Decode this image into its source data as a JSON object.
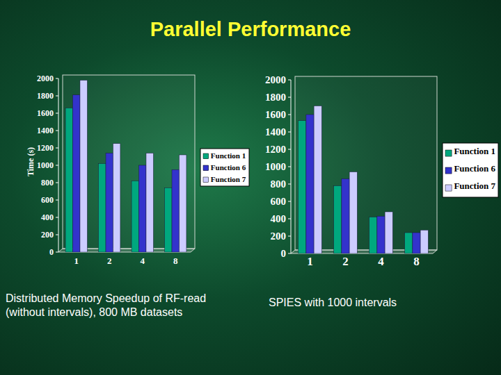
{
  "slide": {
    "title": "Parallel Performance"
  },
  "chart_data": [
    {
      "type": "bar",
      "caption": "Distributed Memory Speedup of RF-read (without intervals), 800 MB datasets",
      "y_label": "Time (s)",
      "categories": [
        "1",
        "2",
        "4",
        "8"
      ],
      "series": [
        {
          "name": "Function 1",
          "color": "#00a87e",
          "values": [
            1660,
            1020,
            820,
            740
          ]
        },
        {
          "name": "Function 6",
          "color": "#3333cc",
          "values": [
            1810,
            1140,
            1000,
            950
          ]
        },
        {
          "name": "Function 7",
          "color": "#ccccff",
          "values": [
            1980,
            1250,
            1140,
            1120
          ]
        }
      ],
      "ylim": [
        0,
        2000
      ],
      "yticks": [
        0,
        200,
        400,
        600,
        800,
        1000,
        1200,
        1400,
        1600,
        1800,
        2000
      ],
      "grid": false,
      "legend": "right"
    },
    {
      "type": "bar",
      "caption": "SPIES with 1000 intervals",
      "categories": [
        "1",
        "2",
        "4",
        "8"
      ],
      "series": [
        {
          "name": "Function 1",
          "color": "#00a87e",
          "values": [
            1530,
            780,
            420,
            240
          ]
        },
        {
          "name": "Function 6",
          "color": "#3333cc",
          "values": [
            1600,
            860,
            430,
            240
          ]
        },
        {
          "name": "Function 7",
          "color": "#ccccff",
          "values": [
            1700,
            940,
            480,
            270
          ]
        }
      ],
      "ylim": [
        0,
        2000
      ],
      "yticks": [
        0,
        200,
        400,
        600,
        800,
        1000,
        1200,
        1400,
        1600,
        1800,
        2000
      ],
      "grid": false,
      "legend": "right"
    }
  ]
}
